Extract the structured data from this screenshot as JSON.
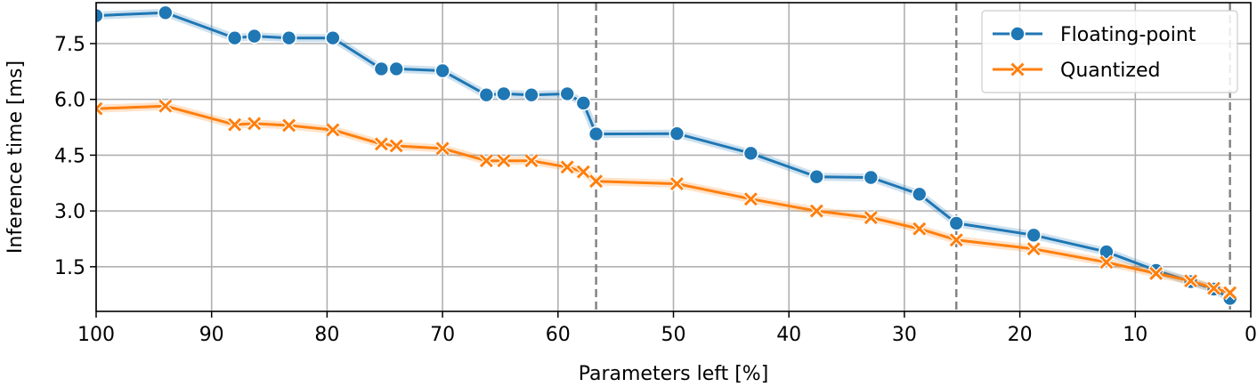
{
  "chart_data": {
    "type": "line",
    "xlabel": "Parameters left [%]",
    "ylabel": "Inference time [ms]",
    "xlim": [
      100,
      0
    ],
    "ylim": [
      0.3,
      8.6
    ],
    "x_reversed": true,
    "grid": true,
    "legend_position": "top-right",
    "xticks": [
      100,
      90,
      80,
      70,
      60,
      50,
      40,
      30,
      20,
      10,
      0
    ],
    "yticks": [
      1.5,
      3.0,
      4.5,
      6.0,
      7.5
    ],
    "ytick_labels": [
      "1.5",
      "3.0",
      "4.5",
      "6.0",
      "7.5"
    ],
    "vlines": [
      56.7,
      25.5,
      1.8
    ],
    "series": [
      {
        "name": "Floating-point",
        "color": "#1f77b4",
        "marker": "circle",
        "x": [
          100,
          94,
          88,
          86.3,
          83.3,
          79.5,
          75.3,
          74,
          70,
          66.2,
          64.7,
          62.3,
          59.2,
          57.8,
          56.7,
          49.7,
          43.3,
          37.6,
          32.9,
          28.7,
          25.5,
          18.8,
          12.5,
          8.2,
          5.2,
          3.2,
          1.8
        ],
        "y": [
          8.25,
          8.33,
          7.65,
          7.7,
          7.65,
          7.65,
          6.82,
          6.82,
          6.77,
          6.12,
          6.15,
          6.12,
          6.15,
          5.9,
          5.07,
          5.08,
          4.55,
          3.92,
          3.9,
          3.45,
          2.67,
          2.35,
          1.9,
          1.4,
          1.1,
          0.9,
          0.65
        ]
      },
      {
        "name": "Quantized",
        "color": "#ff7f0e",
        "marker": "x",
        "x": [
          100,
          94,
          88,
          86.3,
          83.3,
          79.5,
          75.3,
          74,
          70,
          66.2,
          64.7,
          62.3,
          59.2,
          57.8,
          56.7,
          49.7,
          43.3,
          37.6,
          32.9,
          28.7,
          25.5,
          18.8,
          12.5,
          8.2,
          5.2,
          3.2,
          1.8
        ],
        "y": [
          5.75,
          5.82,
          5.32,
          5.35,
          5.3,
          5.18,
          4.8,
          4.75,
          4.68,
          4.35,
          4.35,
          4.35,
          4.18,
          4.05,
          3.8,
          3.73,
          3.32,
          3.0,
          2.82,
          2.52,
          2.22,
          1.98,
          1.62,
          1.32,
          1.12,
          0.92,
          0.8
        ]
      }
    ]
  }
}
